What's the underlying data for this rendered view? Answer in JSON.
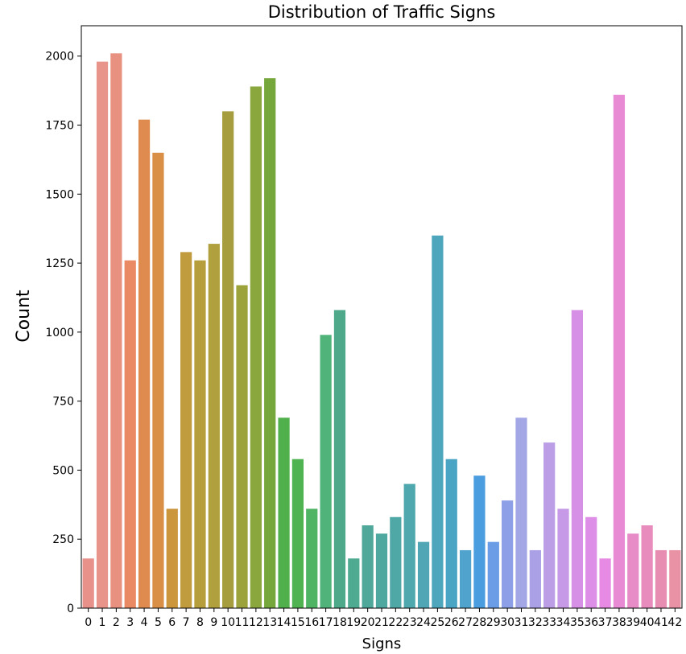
{
  "chart_data": {
    "type": "bar",
    "title": "Distribution of Traffic Signs",
    "xlabel": "Signs",
    "ylabel": "Count",
    "ylim": [
      0,
      2110
    ],
    "yticks": [
      0,
      250,
      500,
      750,
      1000,
      1250,
      1500,
      1750,
      2000
    ],
    "categories": [
      "0",
      "1",
      "2",
      "3",
      "4",
      "5",
      "6",
      "7",
      "8",
      "9",
      "10",
      "11",
      "12",
      "13",
      "14",
      "15",
      "16",
      "17",
      "18",
      "19",
      "20",
      "21",
      "22",
      "23",
      "24",
      "25",
      "26",
      "27",
      "28",
      "29",
      "30",
      "31",
      "32",
      "33",
      "34",
      "35",
      "36",
      "37",
      "38",
      "39",
      "40",
      "41",
      "42"
    ],
    "values": [
      180,
      1980,
      2010,
      1260,
      1770,
      1650,
      360,
      1290,
      1260,
      1320,
      1800,
      1170,
      1890,
      1920,
      690,
      540,
      360,
      990,
      1080,
      180,
      300,
      270,
      330,
      450,
      240,
      1350,
      540,
      210,
      480,
      240,
      390,
      690,
      210,
      600,
      360,
      1080,
      330,
      180,
      1860,
      270,
      300,
      210,
      210
    ],
    "colors": [
      "#e7918a",
      "#e8948a",
      "#e99180",
      "#ea8a65",
      "#df8a4f",
      "#d98f46",
      "#cc963d",
      "#c19c3e",
      "#b79e3c",
      "#b0a13e",
      "#a69d3e",
      "#9da33b",
      "#89a73d",
      "#75a73c",
      "#4fb04c",
      "#50b351",
      "#50b465",
      "#4fb37a",
      "#4ea88a",
      "#4eaa91",
      "#50a89b",
      "#4ea8a0",
      "#50a8a6",
      "#4fa8ad",
      "#51a6b5",
      "#4ea6bd",
      "#4aa5c4",
      "#4fa3cd",
      "#4a9ee0",
      "#6b9ce6",
      "#8d9fe7",
      "#a3a7e6",
      "#a9a0e6",
      "#bb9ee6",
      "#c69ae6",
      "#d690e6",
      "#dd8ee6",
      "#e78ae3",
      "#e88ad4",
      "#e88cc8",
      "#e88cbe",
      "#e88db2",
      "#e991a5"
    ]
  }
}
